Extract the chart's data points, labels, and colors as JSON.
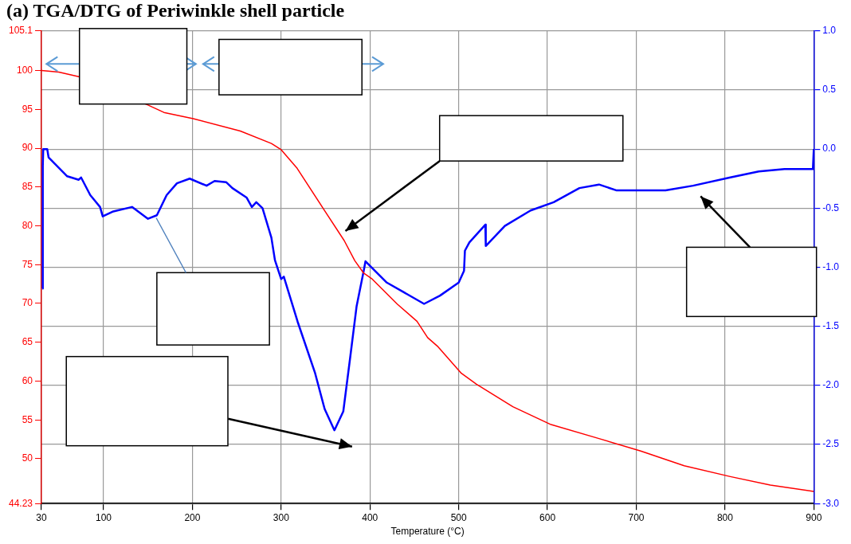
{
  "chart_data": {
    "type": "line",
    "title": "(a) TGA/DTG of Periwinkle shell particle",
    "xlabel": "Temperature (°C)",
    "xlim": [
      30,
      900
    ],
    "xticks": [
      30,
      100,
      200,
      300,
      400,
      500,
      600,
      700,
      800,
      900
    ],
    "ylim": [
      44.23,
      105.1
    ],
    "yticks": [
      44.23,
      50,
      55,
      60,
      65,
      70,
      75,
      80,
      85,
      90,
      95,
      100,
      105.1
    ],
    "y2lim": [
      -3,
      1
    ],
    "y2ticks": [
      {
        "value": -3,
        "label": "-3.0"
      },
      {
        "value": -2.5,
        "label": "-2.5"
      },
      {
        "value": -2,
        "label": "-2.0"
      },
      {
        "value": -1.5,
        "label": "-1.5"
      },
      {
        "value": -1,
        "label": "-1.0"
      },
      {
        "value": -0.5,
        "label": "-0.5"
      },
      {
        "value": 0,
        "label": "0.0"
      },
      {
        "value": 0.5,
        "label": "0.5"
      },
      {
        "value": 1,
        "label": "1.0"
      }
    ],
    "grid": true,
    "marker": "none",
    "series": [
      {
        "color": "#ff0000",
        "x": [
          30,
          49.5,
          72,
          149,
          168,
          201,
          254,
          289,
          300,
          318,
          347,
          371,
          383,
          393,
          402,
          431,
          453,
          465,
          476,
          503,
          520,
          561,
          604,
          658,
          705,
          754,
          806,
          851,
          900
        ],
        "values": [
          100,
          99.8,
          99.2,
          95.6,
          94.6,
          93.8,
          92.2,
          90.6,
          89.8,
          87.4,
          82.3,
          78.1,
          75.5,
          73.9,
          73.2,
          69.9,
          67.7,
          65.6,
          64.5,
          61,
          59.6,
          56.7,
          54.4,
          52.6,
          51,
          49.1,
          47.7,
          46.6,
          45.8
        ]
      },
      {
        "color": "#0000ff",
        "axis": "y2",
        "x": [
          31,
          31.5,
          32,
          36.5,
          38,
          59,
          72,
          74.6,
          85,
          96,
          99,
          110,
          132,
          150,
          160,
          171,
          182.6,
          197,
          216,
          225,
          238,
          245,
          261,
          267,
          272,
          279,
          289,
          293,
          300,
          303,
          318.5,
          338,
          349,
          360,
          370,
          378,
          385,
          393,
          395,
          419,
          461,
          479,
          500,
          506,
          507,
          512,
          530,
          530.5,
          552,
          581,
          607,
          636,
          658,
          678,
          705,
          733,
          764,
          806,
          838,
          867,
          899,
          900
        ],
        "values": [
          -1.18,
          -0.14,
          0,
          0,
          -0.07,
          -0.23,
          -0.26,
          -0.24,
          -0.39,
          -0.49,
          -0.57,
          -0.53,
          -0.49,
          -0.59,
          -0.56,
          -0.39,
          -0.29,
          -0.25,
          -0.31,
          -0.27,
          -0.28,
          -0.33,
          -0.41,
          -0.49,
          -0.45,
          -0.5,
          -0.75,
          -0.94,
          -1.1,
          -1.08,
          -1.46,
          -1.89,
          -2.2,
          -2.38,
          -2.22,
          -1.75,
          -1.33,
          -1.03,
          -0.95,
          -1.13,
          -1.31,
          -1.24,
          -1.13,
          -1.03,
          -0.86,
          -0.79,
          -0.64,
          -0.82,
          -0.65,
          -0.52,
          -0.45,
          -0.33,
          -0.3,
          -0.35,
          -0.35,
          -0.35,
          -0.31,
          -0.24,
          -0.19,
          -0.17,
          -0.17,
          0
        ]
      }
    ]
  }
}
